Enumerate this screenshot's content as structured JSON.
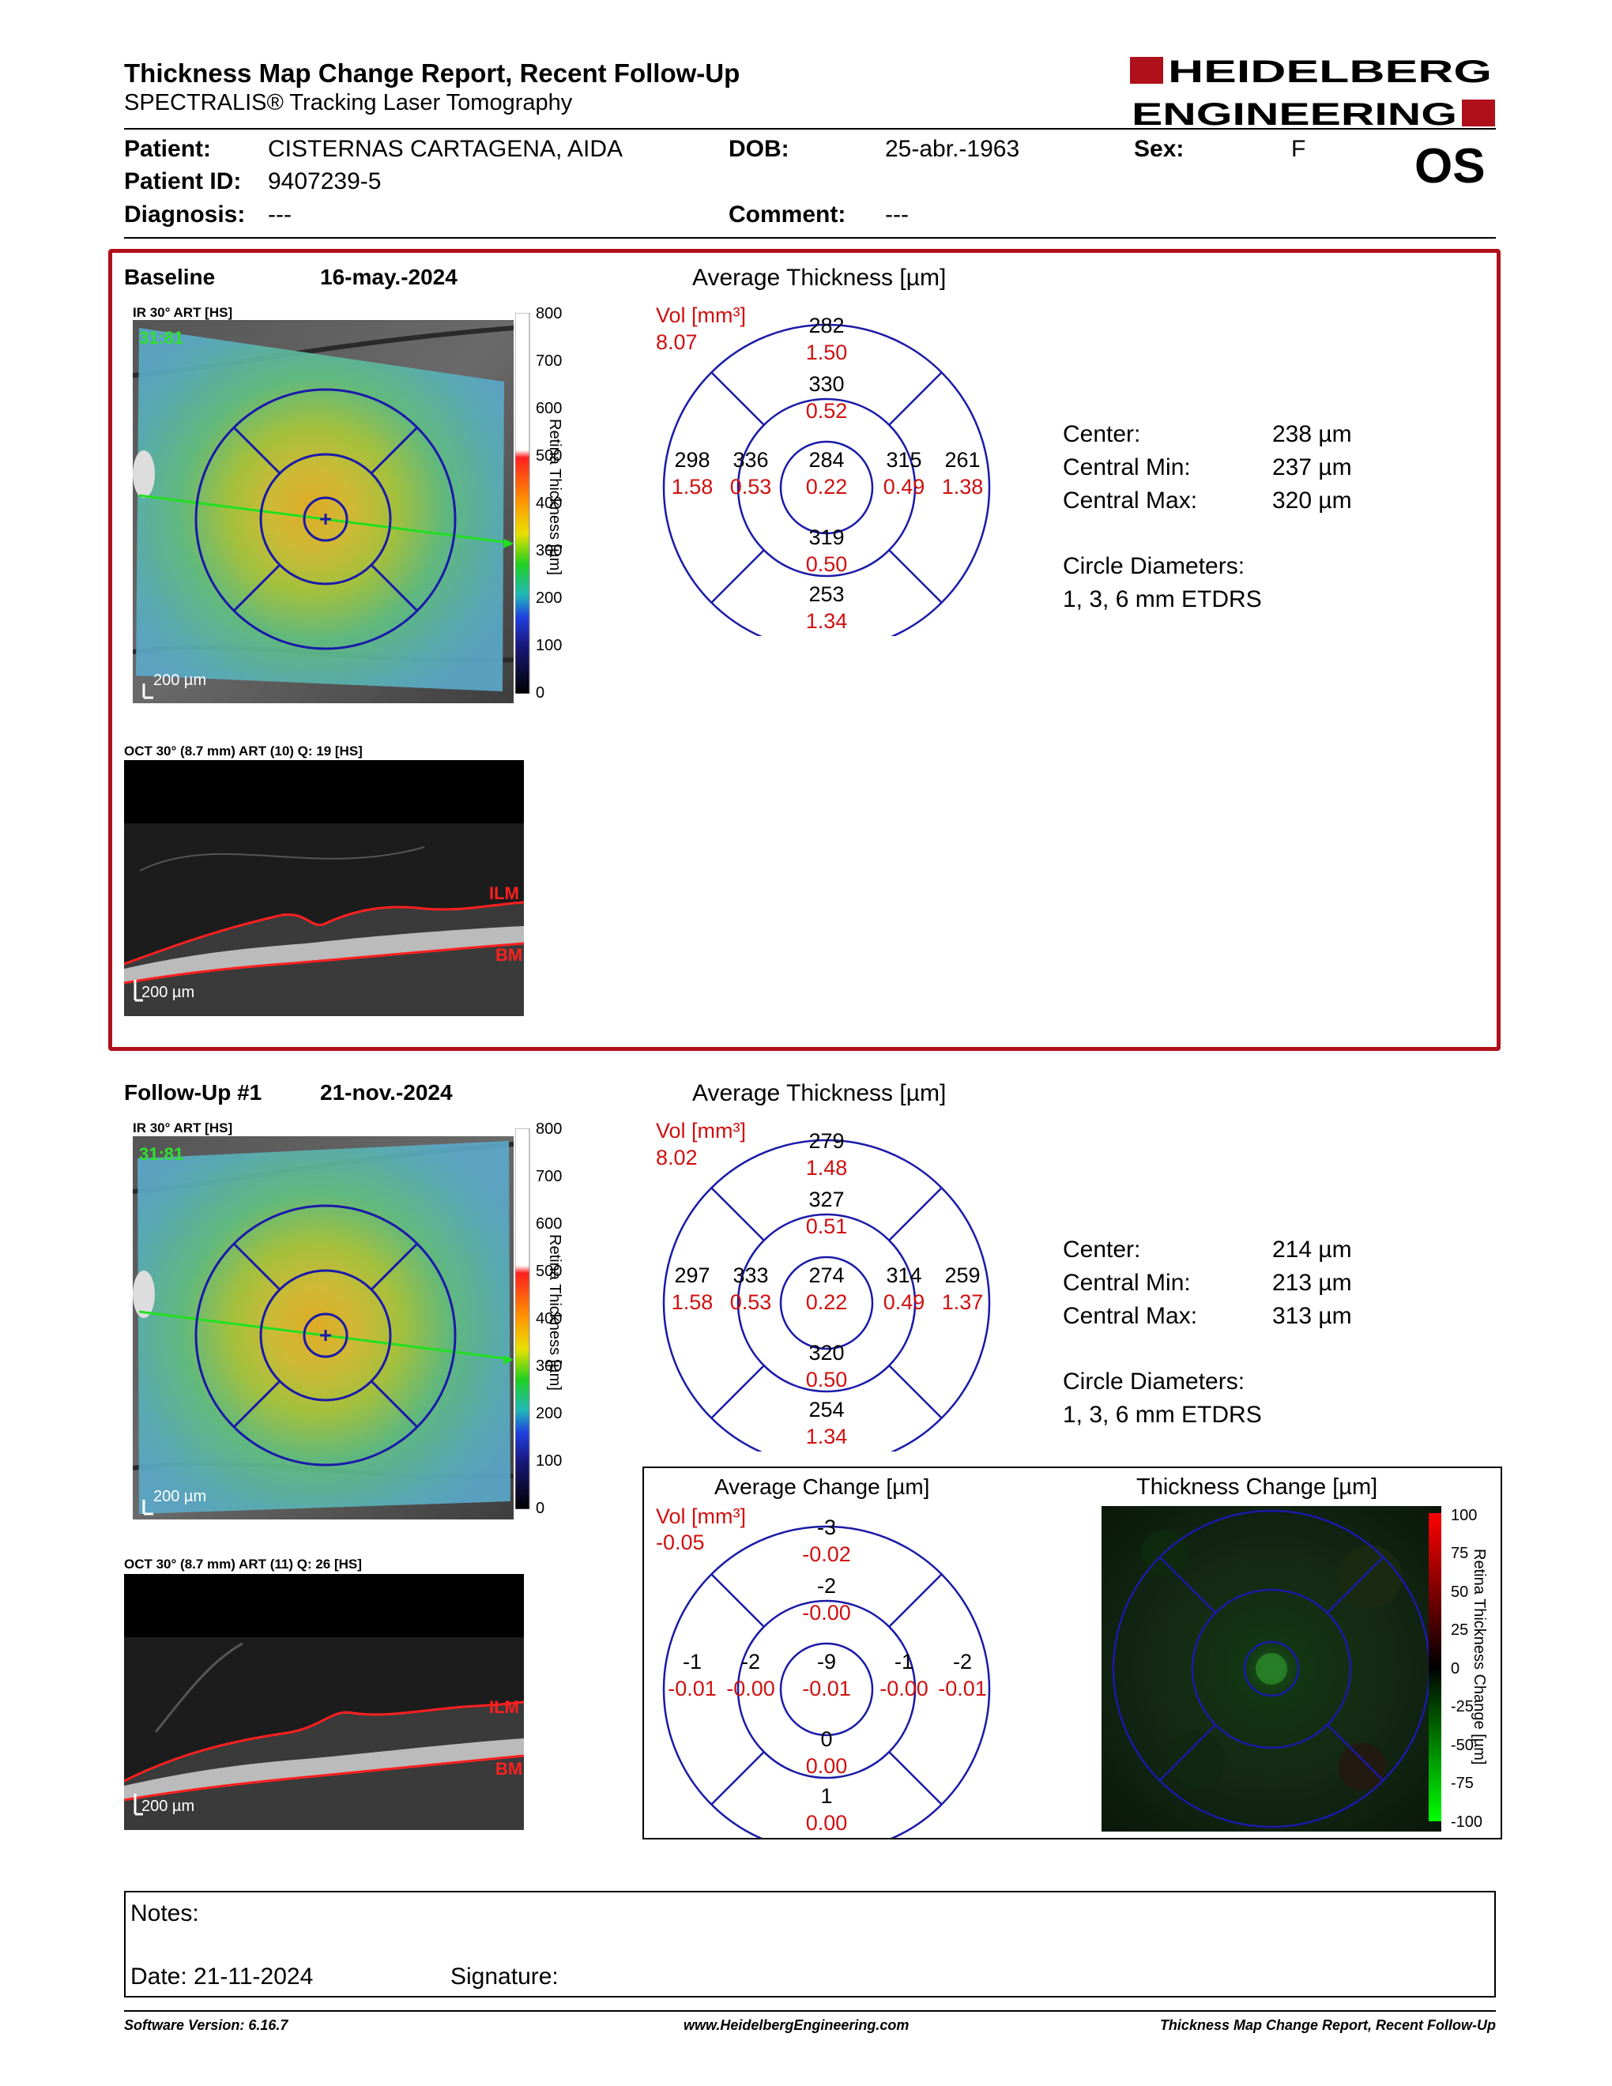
{
  "header": {
    "title": "Thickness Map Change Report, Recent Follow-Up",
    "subtitle": "SPECTRALIS® Tracking Laser Tomography",
    "logo_line1": "HEIDELBERG",
    "logo_line2": "ENGINEERING",
    "eye": "OS"
  },
  "patient": {
    "patient_label": "Patient:",
    "patient_value": "CISTERNAS CARTAGENA, AIDA",
    "dob_label": "DOB:",
    "dob_value": "25-abr.-1963",
    "sex_label": "Sex:",
    "sex_value": "F",
    "id_label": "Patient ID:",
    "id_value": "9407239-5",
    "diagnosis_label": "Diagnosis:",
    "diagnosis_value": "---",
    "comment_label": "Comment:",
    "comment_value": "---"
  },
  "colors": {
    "frame_red": "#b0101a",
    "etdrs_blue": "#1a1aa8",
    "value_red": "#d01010"
  },
  "baseline": {
    "label": "Baseline",
    "date": "16-may.-2024",
    "ir_caption": "IR 30° ART [HS]",
    "ir_overlay": "31:81",
    "scalebar": "200 µm",
    "color_scale": [
      "800",
      "700",
      "600",
      "500",
      "400",
      "300",
      "200",
      "100",
      "0"
    ],
    "color_scale_label": "Retina Thickness [µm]",
    "oct_caption": "OCT 30° (8.7 mm) ART (10) Q: 19 [HS]",
    "oct_scalebar": "200 µm",
    "ilm": "ILM",
    "bm": "BM",
    "avg_title": "Average Thickness [µm]",
    "vol_label": "Vol [mm³]",
    "vol_total": "8.07",
    "etdrs": {
      "outer_top": [
        "282",
        "1.50"
      ],
      "inner_top": [
        "330",
        "0.52"
      ],
      "center": [
        "284",
        "0.22"
      ],
      "inner_bottom": [
        "319",
        "0.50"
      ],
      "outer_bottom": [
        "253",
        "1.34"
      ],
      "outer_left": [
        "298",
        "1.58"
      ],
      "inner_left": [
        "336",
        "0.53"
      ],
      "inner_right": [
        "315",
        "0.49"
      ],
      "outer_right": [
        "261",
        "1.38"
      ]
    },
    "stats": {
      "center_label": "Center:",
      "center_value": "238 µm",
      "min_label": "Central Min:",
      "min_value": "237 µm",
      "max_label": "Central Max:",
      "max_value": "320 µm",
      "circle_label": "Circle Diameters:",
      "circle_value": "1, 3, 6 mm ETDRS"
    }
  },
  "followup": {
    "label": "Follow-Up #1",
    "date": "21-nov.-2024",
    "ir_caption": "IR 30° ART [HS]",
    "ir_overlay": "31:81",
    "scalebar": "200 µm",
    "color_scale": [
      "800",
      "700",
      "600",
      "500",
      "400",
      "300",
      "200",
      "100",
      "0"
    ],
    "color_scale_label": "Retina Thickness [µm]",
    "oct_caption": "OCT 30° (8.7 mm) ART (11) Q: 26 [HS]",
    "oct_scalebar": "200 µm",
    "ilm": "ILM",
    "bm": "BM",
    "avg_title": "Average Thickness [µm]",
    "vol_label": "Vol [mm³]",
    "vol_total": "8.02",
    "etdrs": {
      "outer_top": [
        "279",
        "1.48"
      ],
      "inner_top": [
        "327",
        "0.51"
      ],
      "center": [
        "274",
        "0.22"
      ],
      "inner_bottom": [
        "320",
        "0.50"
      ],
      "outer_bottom": [
        "254",
        "1.34"
      ],
      "outer_left": [
        "297",
        "1.58"
      ],
      "inner_left": [
        "333",
        "0.53"
      ],
      "inner_right": [
        "314",
        "0.49"
      ],
      "outer_right": [
        "259",
        "1.37"
      ]
    },
    "stats": {
      "center_label": "Center:",
      "center_value": "214 µm",
      "min_label": "Central Min:",
      "min_value": "213 µm",
      "max_label": "Central Max:",
      "max_value": "313 µm",
      "circle_label": "Circle Diameters:",
      "circle_value": "1, 3, 6 mm ETDRS"
    }
  },
  "change": {
    "avg_title": "Average Change [µm]",
    "vol_label": "Vol [mm³]",
    "vol_total": "-0.05",
    "etdrs": {
      "outer_top": [
        "-3",
        "-0.02"
      ],
      "inner_top": [
        "-2",
        "-0.00"
      ],
      "center": [
        "-9",
        "-0.01"
      ],
      "inner_bottom": [
        "0",
        "0.00"
      ],
      "outer_bottom": [
        "1",
        "0.00"
      ],
      "outer_left": [
        "-1",
        "-0.01"
      ],
      "inner_left": [
        "-2",
        "-0.00"
      ],
      "inner_right": [
        "-1",
        "-0.00"
      ],
      "outer_right": [
        "-2",
        "-0.01"
      ]
    },
    "map_title": "Thickness Change [µm]",
    "scale": [
      "100",
      "75",
      "50",
      "25",
      "0",
      "-25",
      "-50",
      "-75",
      "-100"
    ],
    "scale_label": "Retina Thickness Change [µm]"
  },
  "notes": {
    "notes_label": "Notes:",
    "date_label": "Date: 21-11-2024",
    "signature_label": "Signature:"
  },
  "footer": {
    "software": "Software Version: 6.16.7",
    "website": "www.HeidelbergEngineering.com",
    "report_name": "Thickness Map Change Report, Recent Follow-Up"
  }
}
